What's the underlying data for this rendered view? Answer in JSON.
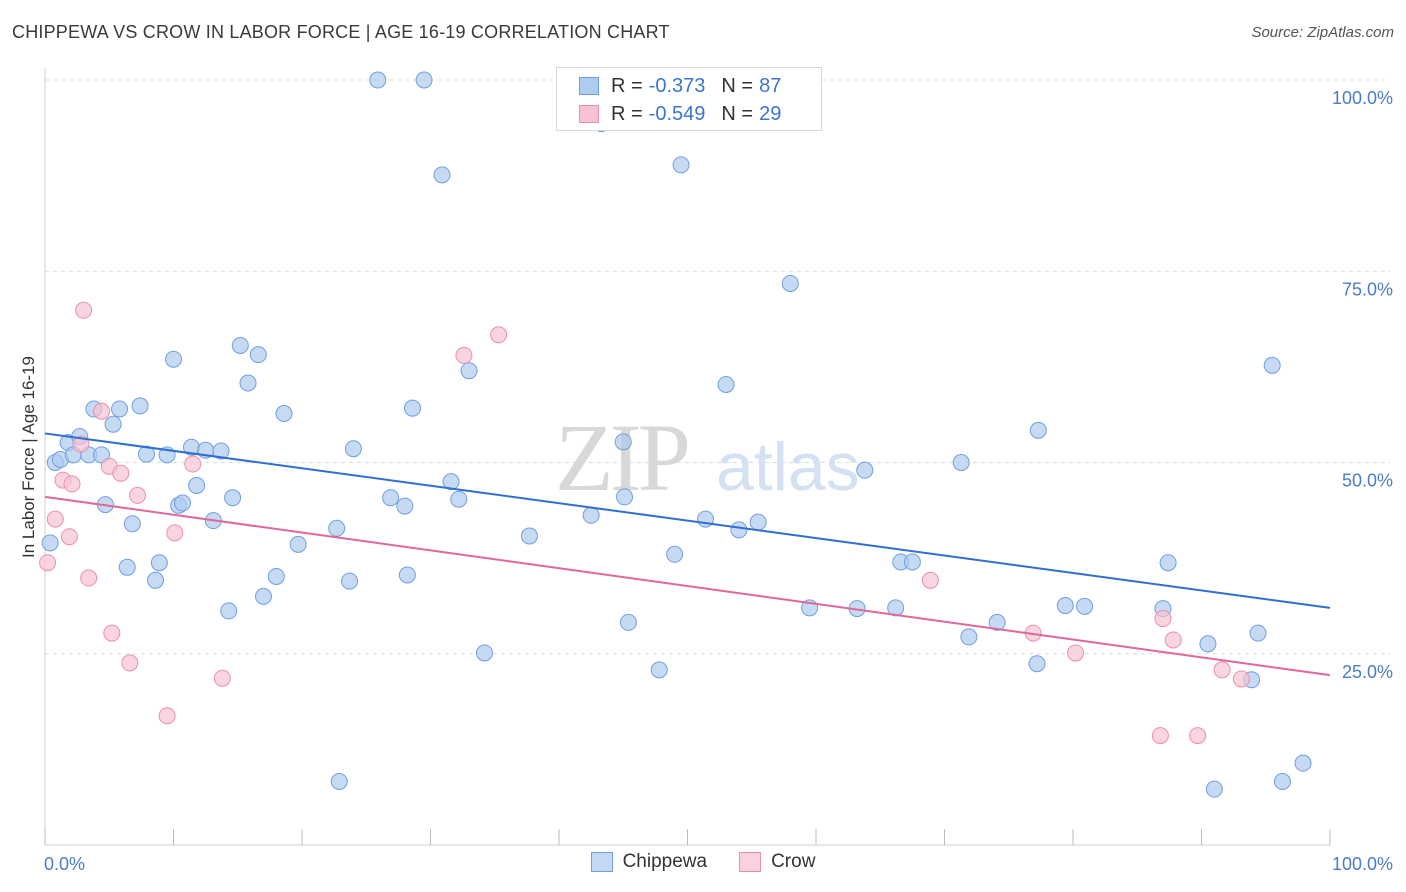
{
  "title": "CHIPPEWA VS CROW IN LABOR FORCE | AGE 16-19 CORRELATION CHART",
  "source": "Source: ZipAtlas.com",
  "watermark": {
    "zip": "ZIP",
    "atlas": "atlas"
  },
  "legend": {
    "rows": [
      {
        "r_label": "R =",
        "r_value": "-0.373",
        "n_label": "N =",
        "n_value": "87"
      },
      {
        "r_label": "R =",
        "r_value": "-0.549",
        "n_label": "N =",
        "n_value": "29"
      }
    ]
  },
  "bottom_legend": [
    "Chippewa",
    "Crow"
  ],
  "colors": {
    "chippewa_fill": "#aecbf0",
    "chippewa_stroke": "#6f9fe0",
    "chippewa_line": "#2f6fd1",
    "crow_fill": "#f7c3d3",
    "crow_stroke": "#ea8fae",
    "crow_line": "#e0679a",
    "tick_text": "#4a7cc7"
  },
  "chart_data": {
    "type": "scatter",
    "title": "CHIPPEWA VS CROW IN LABOR FORCE | AGE 16-19 CORRELATION CHART",
    "xlabel": "",
    "ylabel": "In Labor Force | Age 16-19",
    "xlim": [
      0,
      100
    ],
    "ylim": [
      0,
      100
    ],
    "x_tick_labels": [
      "0.0%",
      "100.0%"
    ],
    "y_ticks": [
      25,
      50,
      75,
      100
    ],
    "y_tick_labels": [
      "25.0%",
      "50.0%",
      "75.0%",
      "100.0%"
    ],
    "grid": true,
    "legend_position": "top-center",
    "series": [
      {
        "name": "Chippewa",
        "r": -0.373,
        "n": 87,
        "trend": {
          "x": [
            0,
            100
          ],
          "y": [
            53.8,
            31.0
          ]
        },
        "points": [
          [
            0.4,
            39.5
          ],
          [
            0.8,
            50.0
          ],
          [
            1.2,
            50.4
          ],
          [
            1.8,
            52.6
          ],
          [
            2.2,
            51.0
          ],
          [
            2.7,
            53.4
          ],
          [
            3.4,
            51.0
          ],
          [
            3.8,
            57.0
          ],
          [
            4.4,
            51.0
          ],
          [
            4.7,
            44.5
          ],
          [
            5.3,
            55.0
          ],
          [
            5.8,
            57.0
          ],
          [
            6.4,
            36.3
          ],
          [
            6.8,
            42.0
          ],
          [
            7.4,
            57.4
          ],
          [
            7.9,
            51.1
          ],
          [
            8.6,
            34.6
          ],
          [
            8.9,
            36.9
          ],
          [
            9.5,
            51.0
          ],
          [
            10.0,
            63.5
          ],
          [
            10.4,
            44.4
          ],
          [
            10.7,
            44.7
          ],
          [
            11.4,
            52.0
          ],
          [
            11.8,
            47.0
          ],
          [
            12.5,
            51.6
          ],
          [
            13.1,
            42.4
          ],
          [
            13.7,
            51.5
          ],
          [
            14.3,
            30.6
          ],
          [
            14.6,
            45.4
          ],
          [
            15.2,
            65.3
          ],
          [
            15.8,
            60.4
          ],
          [
            16.6,
            64.1
          ],
          [
            17.0,
            32.5
          ],
          [
            18.0,
            35.1
          ],
          [
            18.6,
            56.4
          ],
          [
            19.7,
            39.3
          ],
          [
            22.9,
            8.3
          ],
          [
            22.7,
            41.4
          ],
          [
            23.7,
            34.5
          ],
          [
            24.0,
            51.8
          ],
          [
            25.9,
            100.0
          ],
          [
            26.9,
            45.4
          ],
          [
            28.0,
            44.3
          ],
          [
            28.2,
            35.3
          ],
          [
            28.6,
            57.1
          ],
          [
            29.5,
            100.0
          ],
          [
            30.9,
            87.6
          ],
          [
            31.6,
            47.5
          ],
          [
            32.2,
            45.2
          ],
          [
            33.0,
            62.0
          ],
          [
            34.2,
            25.1
          ],
          [
            37.7,
            40.4
          ],
          [
            42.5,
            43.1
          ],
          [
            43.3,
            94.3
          ],
          [
            45.1,
            45.5
          ],
          [
            45.0,
            52.7
          ],
          [
            45.4,
            29.1
          ],
          [
            47.8,
            22.9
          ],
          [
            49.0,
            38.0
          ],
          [
            49.5,
            88.9
          ],
          [
            51.4,
            42.6
          ],
          [
            53.0,
            60.2
          ],
          [
            54.0,
            41.2
          ],
          [
            55.5,
            42.2
          ],
          [
            58.0,
            73.4
          ],
          [
            59.5,
            31.0
          ],
          [
            63.2,
            30.9
          ],
          [
            63.8,
            49.0
          ],
          [
            66.2,
            31.0
          ],
          [
            66.6,
            37.0
          ],
          [
            67.5,
            37.0
          ],
          [
            71.3,
            50.0
          ],
          [
            71.9,
            27.2
          ],
          [
            74.1,
            29.1
          ],
          [
            77.2,
            23.7
          ],
          [
            77.3,
            54.2
          ],
          [
            79.4,
            31.3
          ],
          [
            80.9,
            31.2
          ],
          [
            87.0,
            30.9
          ],
          [
            87.4,
            36.9
          ],
          [
            90.5,
            26.3
          ],
          [
            91.0,
            7.3
          ],
          [
            93.9,
            21.6
          ],
          [
            94.4,
            27.7
          ],
          [
            95.5,
            62.7
          ],
          [
            96.3,
            8.3
          ],
          [
            97.9,
            10.7
          ]
        ]
      },
      {
        "name": "Crow",
        "r": -0.549,
        "n": 29,
        "trend": {
          "x": [
            0,
            100
          ],
          "y": [
            45.5,
            22.2
          ]
        },
        "points": [
          [
            0.2,
            36.9
          ],
          [
            0.8,
            42.6
          ],
          [
            1.4,
            47.7
          ],
          [
            1.9,
            40.3
          ],
          [
            2.1,
            47.2
          ],
          [
            2.8,
            52.4
          ],
          [
            3.0,
            69.9
          ],
          [
            3.4,
            34.9
          ],
          [
            4.4,
            56.7
          ],
          [
            5.0,
            49.5
          ],
          [
            5.2,
            27.7
          ],
          [
            5.9,
            48.6
          ],
          [
            6.6,
            23.8
          ],
          [
            7.2,
            45.7
          ],
          [
            9.5,
            16.9
          ],
          [
            10.1,
            40.8
          ],
          [
            11.5,
            49.8
          ],
          [
            13.8,
            21.8
          ],
          [
            32.6,
            64.0
          ],
          [
            35.3,
            66.7
          ],
          [
            68.9,
            34.6
          ],
          [
            76.9,
            27.7
          ],
          [
            80.2,
            25.1
          ],
          [
            86.8,
            14.3
          ],
          [
            87.0,
            29.6
          ],
          [
            87.8,
            26.8
          ],
          [
            89.7,
            14.3
          ],
          [
            91.6,
            22.9
          ],
          [
            93.1,
            21.7
          ]
        ]
      }
    ]
  }
}
